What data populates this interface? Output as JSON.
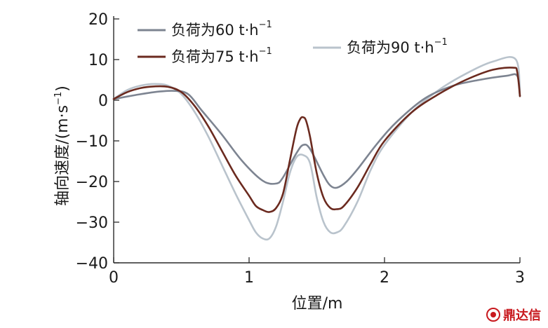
{
  "chart_data": {
    "type": "line",
    "title": "",
    "xlabel": "位置/m",
    "ylabel": "轴向速度/(m·s",
    "ylabel_unit_exponent": "−1",
    "ylabel_close": ")",
    "xlim": [
      0,
      3
    ],
    "ylim": [
      -40,
      20
    ],
    "xticks": [
      0,
      1,
      2,
      3
    ],
    "yticks": [
      20,
      10,
      0,
      -10,
      -20,
      -30,
      -40
    ],
    "grid": false,
    "legend_placement": "top",
    "series": [
      {
        "name": "负荷为60 t·h",
        "unit_exponent": "−1",
        "color": "#7d8491",
        "x": [
          0,
          0.15,
          0.3,
          0.45,
          0.55,
          0.65,
          0.8,
          0.95,
          1.1,
          1.2,
          1.25,
          1.35,
          1.4,
          1.45,
          1.55,
          1.6,
          1.65,
          1.72,
          1.8,
          1.95,
          2.1,
          2.3,
          2.5,
          2.7,
          2.9,
          2.98,
          3.0
        ],
        "y": [
          0.3,
          1.2,
          2.0,
          2.3,
          1.5,
          -2.5,
          -8.5,
          -15,
          -19.8,
          -20.5,
          -19,
          -13,
          -11,
          -12,
          -18.5,
          -21,
          -21.5,
          -20,
          -17,
          -10.5,
          -5,
          0.5,
          3.5,
          5,
          6,
          6,
          1
        ]
      },
      {
        "name": "负荷为75 t·h",
        "unit_exponent": "−1",
        "color": "#6b2a1f",
        "x": [
          0,
          0.1,
          0.2,
          0.3,
          0.4,
          0.5,
          0.6,
          0.7,
          0.8,
          0.9,
          1.0,
          1.05,
          1.1,
          1.15,
          1.2,
          1.25,
          1.3,
          1.35,
          1.38,
          1.4,
          1.42,
          1.45,
          1.5,
          1.55,
          1.6,
          1.65,
          1.7,
          1.8,
          1.9,
          2.0,
          2.2,
          2.4,
          2.6,
          2.8,
          2.95,
          2.98,
          3.0
        ],
        "y": [
          0.3,
          2.0,
          3.0,
          3.4,
          3.3,
          2.0,
          -1.5,
          -6.5,
          -12.5,
          -18.5,
          -23.5,
          -26,
          -27,
          -27.5,
          -26.5,
          -23,
          -15,
          -7,
          -4.5,
          -4.2,
          -5,
          -9,
          -18,
          -24,
          -26.5,
          -26.8,
          -26,
          -21.5,
          -15.5,
          -10,
          -3,
          1.5,
          5,
          7.5,
          8,
          7,
          1
        ]
      },
      {
        "name": "负荷为90 t·h",
        "unit_exponent": "−1",
        "color": "#b9c3cc",
        "x": [
          0,
          0.1,
          0.2,
          0.3,
          0.4,
          0.5,
          0.6,
          0.7,
          0.8,
          0.9,
          1.0,
          1.05,
          1.1,
          1.15,
          1.2,
          1.25,
          1.3,
          1.35,
          1.4,
          1.45,
          1.5,
          1.55,
          1.6,
          1.65,
          1.7,
          1.8,
          1.9,
          2.0,
          2.2,
          2.4,
          2.6,
          2.8,
          2.97,
          3.0
        ],
        "y": [
          0.3,
          2.5,
          3.6,
          4.0,
          3.6,
          1.5,
          -3,
          -9,
          -16,
          -23,
          -29.5,
          -32.5,
          -34,
          -34,
          -31,
          -25,
          -18,
          -14,
          -13.5,
          -15.5,
          -24,
          -30,
          -32.5,
          -32.5,
          -31,
          -25,
          -17,
          -11,
          -3,
          2.5,
          6.5,
          9.5,
          10,
          1
        ]
      }
    ]
  },
  "watermark": {
    "text": "鼎达信",
    "color": "#c8191e"
  }
}
